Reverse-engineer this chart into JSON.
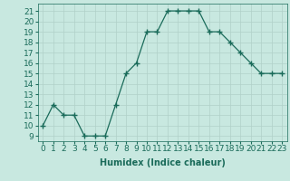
{
  "x": [
    0,
    1,
    2,
    3,
    4,
    5,
    6,
    7,
    8,
    9,
    10,
    11,
    12,
    13,
    14,
    15,
    16,
    17,
    18,
    19,
    20,
    21,
    22,
    23
  ],
  "y": [
    10,
    12,
    11,
    11,
    9,
    9,
    9,
    12,
    15,
    16,
    19,
    19,
    21,
    21,
    21,
    21,
    19,
    19,
    18,
    17,
    16,
    15,
    15,
    15
  ],
  "xlabel": "Humidex (Indice chaleur)",
  "ylabel": "",
  "xlim": [
    -0.5,
    23.5
  ],
  "ylim": [
    8.5,
    21.7
  ],
  "yticks": [
    9,
    10,
    11,
    12,
    13,
    14,
    15,
    16,
    17,
    18,
    19,
    20,
    21
  ],
  "xticks": [
    0,
    1,
    2,
    3,
    4,
    5,
    6,
    7,
    8,
    9,
    10,
    11,
    12,
    13,
    14,
    15,
    16,
    17,
    18,
    19,
    20,
    21,
    22,
    23
  ],
  "line_color": "#1a6b5a",
  "marker_color": "#1a6b5a",
  "bg_color": "#c8e8e0",
  "grid_color": "#b0d0c8",
  "axis_fontsize": 7,
  "tick_fontsize": 6.5
}
